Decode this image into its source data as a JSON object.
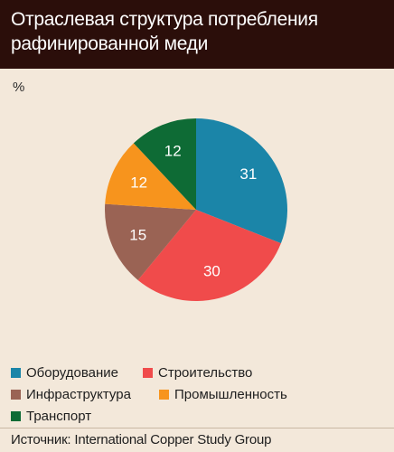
{
  "header": {
    "title_line1": "Отраслевая структура потребления",
    "title_line2": "рафинированной меди"
  },
  "unit_label": "%",
  "chart_data": {
    "type": "pie",
    "title": "Отраслевая структура потребления рафинированной меди",
    "unit": "%",
    "slices": [
      {
        "label": "Оборудование",
        "value": 31,
        "color": "#1b85a8"
      },
      {
        "label": "Строительство",
        "value": 30,
        "color": "#f04b4b"
      },
      {
        "label": "Инфраструктура",
        "value": 15,
        "color": "#9a6354"
      },
      {
        "label": "Промышленность",
        "value": 12,
        "color": "#f7941d"
      },
      {
        "label": "Транспорт",
        "value": 12,
        "color": "#0e6b35"
      }
    ],
    "legend_position": "bottom"
  },
  "source": "Источник: International Copper Study Group"
}
